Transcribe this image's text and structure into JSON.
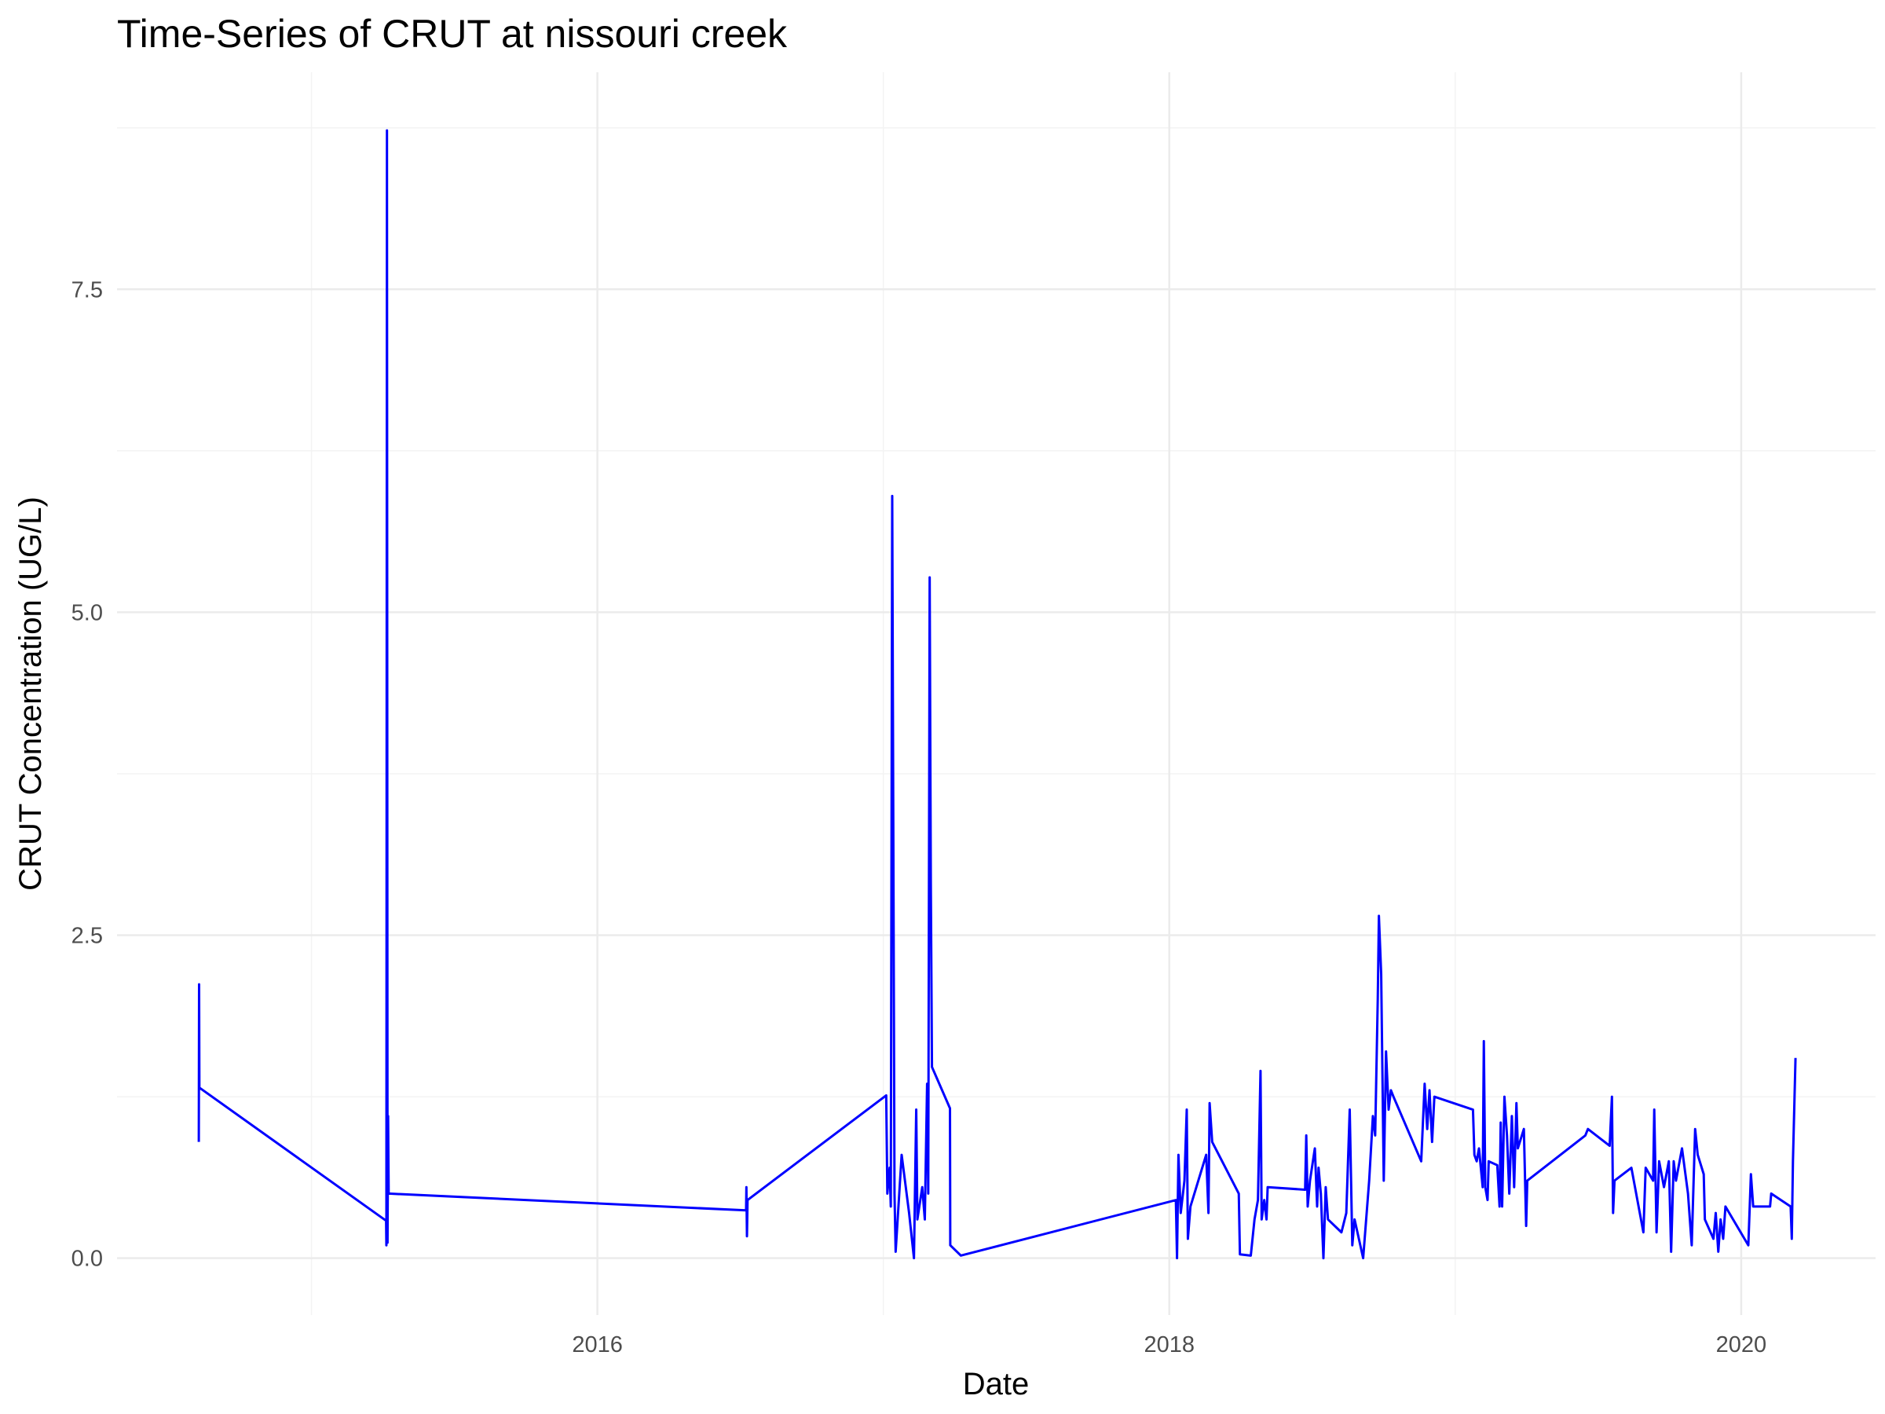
{
  "chart_data": {
    "type": "line",
    "title": "Time-Series of CRUT at nissouri creek",
    "x_label": "Date",
    "y_label": "CRUT Concentration (UG/L)",
    "color": "#0000ff",
    "grid": true,
    "xlim": [
      2014.32,
      2020.47
    ],
    "xticks": [
      2016,
      2018,
      2020
    ],
    "ylim": [
      -0.44,
      9.18
    ],
    "yticks": [
      {
        "value": 0,
        "label": "0.0"
      },
      {
        "value": 2.5,
        "label": "2.5"
      },
      {
        "value": 5,
        "label": "5.0"
      },
      {
        "value": 7.5,
        "label": "7.5"
      }
    ],
    "x": [
      2014.606,
      2014.607,
      2014.608,
      2015.261,
      2015.262,
      2015.264,
      2015.266,
      2015.268,
      2015.27,
      2016.52,
      2016.521,
      2016.523,
      2016.525,
      2017.01,
      2017.014,
      2017.022,
      2017.026,
      2017.031,
      2017.039,
      2017.043,
      2017.064,
      2017.09,
      2017.107,
      2017.115,
      2017.119,
      2017.136,
      2017.145,
      2017.153,
      2017.157,
      2017.162,
      2017.166,
      2017.17,
      2017.233,
      2017.234,
      2017.271,
      2018.023,
      2018.027,
      2018.032,
      2018.04,
      2018.053,
      2018.061,
      2018.065,
      2018.074,
      2018.129,
      2018.137,
      2018.141,
      2018.15,
      2018.243,
      2018.247,
      2018.285,
      2018.298,
      2018.31,
      2018.319,
      2018.323,
      2018.332,
      2018.34,
      2018.344,
      2018.475,
      2018.479,
      2018.484,
      2018.492,
      2018.509,
      2018.517,
      2018.522,
      2018.53,
      2018.539,
      2018.547,
      2018.555,
      2018.602,
      2018.619,
      2018.631,
      2018.64,
      2018.648,
      2018.678,
      2018.699,
      2018.712,
      2018.72,
      2018.729,
      2018.733,
      2018.741,
      2018.75,
      2018.758,
      2018.767,
      2018.775,
      2018.784,
      2018.881,
      2018.893,
      2018.902,
      2018.91,
      2018.919,
      2018.927,
      2019.062,
      2019.067,
      2019.075,
      2019.083,
      2019.096,
      2019.1,
      2019.105,
      2019.113,
      2019.117,
      2019.147,
      2019.155,
      2019.159,
      2019.164,
      2019.172,
      2019.181,
      2019.189,
      2019.198,
      2019.206,
      2019.214,
      2019.219,
      2019.24,
      2019.248,
      2019.252,
      2019.455,
      2019.464,
      2019.54,
      2019.548,
      2019.552,
      2019.557,
      2019.616,
      2019.658,
      2019.666,
      2019.692,
      2019.696,
      2019.704,
      2019.713,
      2019.73,
      2019.747,
      2019.755,
      2019.764,
      2019.772,
      2019.793,
      2019.814,
      2019.827,
      2019.839,
      2019.848,
      2019.869,
      2019.873,
      2019.903,
      2019.911,
      2019.92,
      2019.928,
      2019.937,
      2019.945,
      2020.025,
      2020.034,
      2020.042,
      2020.101,
      2020.105,
      2020.173,
      2020.177,
      2020.181,
      2020.19
    ],
    "values": [
      0.9,
      2.12,
      1.32,
      0.29,
      0.1,
      8.73,
      0.12,
      1.1,
      0.5,
      0.37,
      0.55,
      0.17,
      0.45,
      1.26,
      0.5,
      0.7,
      0.4,
      5.9,
      0.5,
      0.05,
      0.8,
      0.35,
      0.0,
      1.15,
      0.3,
      0.55,
      0.3,
      1.35,
      0.5,
      5.27,
      2.9,
      1.48,
      1.16,
      0.1,
      0.02,
      0.45,
      0.0,
      0.8,
      0.35,
      0.6,
      1.15,
      0.15,
      0.4,
      0.8,
      0.35,
      1.2,
      0.9,
      0.5,
      0.03,
      0.02,
      0.3,
      0.45,
      1.45,
      0.3,
      0.45,
      0.3,
      0.55,
      0.53,
      0.95,
      0.4,
      0.6,
      0.85,
      0.4,
      0.7,
      0.5,
      0.0,
      0.55,
      0.3,
      0.2,
      0.35,
      1.15,
      0.1,
      0.3,
      0.0,
      0.6,
      1.1,
      0.95,
      2.0,
      2.65,
      2.2,
      0.6,
      1.6,
      1.15,
      1.3,
      1.25,
      0.75,
      1.35,
      1.0,
      1.3,
      0.9,
      1.25,
      1.15,
      0.8,
      0.75,
      0.85,
      0.55,
      1.68,
      0.55,
      0.45,
      0.75,
      0.72,
      0.4,
      1.05,
      0.4,
      1.25,
      0.95,
      0.5,
      1.1,
      0.55,
      1.2,
      0.85,
      1.0,
      0.25,
      0.6,
      0.95,
      1.0,
      0.87,
      1.25,
      0.35,
      0.6,
      0.7,
      0.2,
      0.7,
      0.6,
      1.15,
      0.2,
      0.75,
      0.55,
      0.75,
      0.05,
      0.75,
      0.6,
      0.85,
      0.5,
      0.1,
      1.0,
      0.8,
      0.65,
      0.3,
      0.15,
      0.35,
      0.05,
      0.3,
      0.15,
      0.4,
      0.1,
      0.65,
      0.4,
      0.4,
      0.5,
      0.4,
      0.15,
      0.75,
      1.55
    ]
  }
}
